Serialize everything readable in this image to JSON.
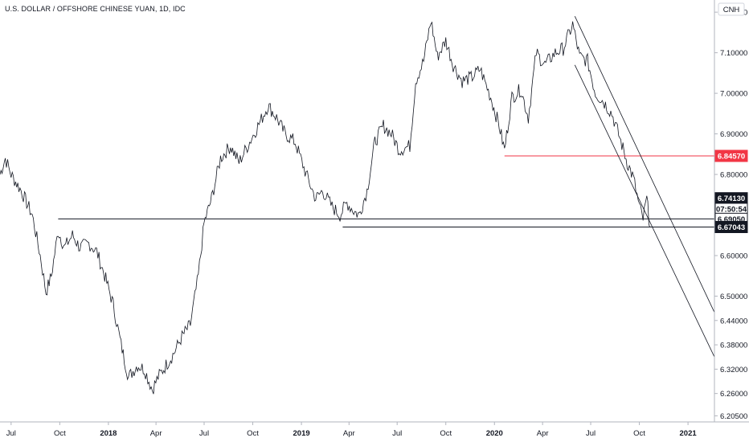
{
  "chart_data": {
    "type": "line",
    "title": "U.S. DOLLAR / OFFSHORE CHINESE YUAN, 1D, IDC",
    "currency_label": "CNH",
    "x_ticks": [
      {
        "label": "Jul",
        "date": "2017-07-01",
        "bold": false
      },
      {
        "label": "Oct",
        "date": "2017-10-01",
        "bold": false
      },
      {
        "label": "2018",
        "date": "2018-01-01",
        "bold": true
      },
      {
        "label": "Apr",
        "date": "2018-04-01",
        "bold": false
      },
      {
        "label": "Jul",
        "date": "2018-07-01",
        "bold": false
      },
      {
        "label": "Oct",
        "date": "2018-10-01",
        "bold": false
      },
      {
        "label": "2019",
        "date": "2019-01-01",
        "bold": true
      },
      {
        "label": "Apr",
        "date": "2019-04-01",
        "bold": false
      },
      {
        "label": "Jul",
        "date": "2019-07-01",
        "bold": false
      },
      {
        "label": "Oct",
        "date": "2019-10-01",
        "bold": false
      },
      {
        "label": "2020",
        "date": "2020-01-01",
        "bold": true
      },
      {
        "label": "Apr",
        "date": "2020-04-01",
        "bold": false
      },
      {
        "label": "Jul",
        "date": "2020-07-01",
        "bold": false
      },
      {
        "label": "Oct",
        "date": "2020-10-01",
        "bold": false
      },
      {
        "label": "2021",
        "date": "2021-01-01",
        "bold": true
      }
    ],
    "y_ticks": [
      "7.20000",
      "7.10000",
      "7.00000",
      "6.90000",
      "6.80000",
      "6.60000",
      "6.50000",
      "6.44000",
      "6.38000",
      "6.32000",
      "6.26000",
      "6.20500"
    ],
    "y_tick_values": [
      7.2,
      7.1,
      7.0,
      6.9,
      6.8,
      6.6,
      6.5,
      6.44,
      6.38,
      6.32,
      6.26,
      6.205
    ],
    "ylim": [
      6.19,
      7.23
    ],
    "xlim": [
      "2017-06-10",
      "2021-02-20"
    ],
    "series": [
      {
        "values": [
          [
            "2017-06-10",
            6.8
          ],
          [
            "2017-06-20",
            6.84
          ],
          [
            "2017-07-01",
            6.8
          ],
          [
            "2017-07-20",
            6.76
          ],
          [
            "2017-08-10",
            6.7
          ],
          [
            "2017-08-25",
            6.6
          ],
          [
            "2017-09-05",
            6.51
          ],
          [
            "2017-09-15",
            6.55
          ],
          [
            "2017-09-28",
            6.66
          ],
          [
            "2017-10-10",
            6.62
          ],
          [
            "2017-10-25",
            6.65
          ],
          [
            "2017-11-08",
            6.62
          ],
          [
            "2017-11-25",
            6.63
          ],
          [
            "2017-12-10",
            6.61
          ],
          [
            "2017-12-25",
            6.55
          ],
          [
            "2018-01-10",
            6.48
          ],
          [
            "2018-01-25",
            6.38
          ],
          [
            "2018-02-08",
            6.3
          ],
          [
            "2018-02-25",
            6.33
          ],
          [
            "2018-03-10",
            6.32
          ],
          [
            "2018-03-25",
            6.27
          ],
          [
            "2018-04-05",
            6.3
          ],
          [
            "2018-04-20",
            6.33
          ],
          [
            "2018-05-05",
            6.36
          ],
          [
            "2018-05-20",
            6.4
          ],
          [
            "2018-06-05",
            6.43
          ],
          [
            "2018-06-20",
            6.55
          ],
          [
            "2018-07-01",
            6.68
          ],
          [
            "2018-07-15",
            6.74
          ],
          [
            "2018-08-01",
            6.84
          ],
          [
            "2018-08-20",
            6.87
          ],
          [
            "2018-09-05",
            6.83
          ],
          [
            "2018-09-25",
            6.88
          ],
          [
            "2018-10-15",
            6.93
          ],
          [
            "2018-10-30",
            6.97
          ],
          [
            "2018-11-15",
            6.94
          ],
          [
            "2018-12-01",
            6.9
          ],
          [
            "2018-12-20",
            6.88
          ],
          [
            "2019-01-10",
            6.8
          ],
          [
            "2019-01-28",
            6.74
          ],
          [
            "2019-02-10",
            6.76
          ],
          [
            "2019-02-28",
            6.72
          ],
          [
            "2019-03-15",
            6.7
          ],
          [
            "2019-03-28",
            6.73
          ],
          [
            "2019-04-10",
            6.71
          ],
          [
            "2019-04-20",
            6.7
          ],
          [
            "2019-05-05",
            6.76
          ],
          [
            "2019-05-20",
            6.88
          ],
          [
            "2019-06-05",
            6.92
          ],
          [
            "2019-06-20",
            6.9
          ],
          [
            "2019-07-05",
            6.86
          ],
          [
            "2019-07-25",
            6.87
          ],
          [
            "2019-08-05",
            7.03
          ],
          [
            "2019-08-20",
            7.08
          ],
          [
            "2019-09-03",
            7.18
          ],
          [
            "2019-09-15",
            7.09
          ],
          [
            "2019-10-01",
            7.13
          ],
          [
            "2019-10-15",
            7.07
          ],
          [
            "2019-11-01",
            7.03
          ],
          [
            "2019-11-20",
            7.04
          ],
          [
            "2019-12-05",
            7.06
          ],
          [
            "2019-12-25",
            6.99
          ],
          [
            "2020-01-10",
            6.92
          ],
          [
            "2020-01-20",
            6.86
          ],
          [
            "2020-02-03",
            6.99
          ],
          [
            "2020-02-20",
            7.01
          ],
          [
            "2020-03-05",
            6.94
          ],
          [
            "2020-03-20",
            7.1
          ],
          [
            "2020-04-05",
            7.07
          ],
          [
            "2020-04-25",
            7.1
          ],
          [
            "2020-05-10",
            7.11
          ],
          [
            "2020-05-28",
            7.17
          ],
          [
            "2020-06-10",
            7.09
          ],
          [
            "2020-06-25",
            7.08
          ],
          [
            "2020-07-10",
            7.0
          ],
          [
            "2020-07-25",
            6.98
          ],
          [
            "2020-08-10",
            6.95
          ],
          [
            "2020-08-25",
            6.89
          ],
          [
            "2020-09-08",
            6.83
          ],
          [
            "2020-09-20",
            6.79
          ],
          [
            "2020-10-01",
            6.72
          ],
          [
            "2020-10-08",
            6.69
          ],
          [
            "2020-10-15",
            6.74
          ],
          [
            "2020-10-21",
            6.67
          ]
        ]
      }
    ],
    "horizontal_lines": [
      {
        "value": 6.8457,
        "from": "2020-01-20",
        "color": "#f23645"
      },
      {
        "value": 6.6905,
        "from": "2017-09-28",
        "color": "#131722"
      },
      {
        "value": 6.6704,
        "from": "2019-03-20",
        "color": "#131722"
      }
    ],
    "channel_lines": [
      {
        "from": [
          "2020-06-01",
          7.19
        ],
        "to": [
          "2021-02-20",
          6.46
        ]
      },
      {
        "from": [
          "2020-06-01",
          7.07
        ],
        "to": [
          "2021-02-20",
          6.35
        ]
      }
    ],
    "price_tags": [
      {
        "label": "6.84570",
        "value": 6.8457,
        "bg": "#f23645",
        "fg": "#ffffff"
      },
      {
        "label": "6.74130",
        "value": 6.7413,
        "bg": "#131722",
        "fg": "#ffffff"
      },
      {
        "label": "07:50:54",
        "value": 6.715,
        "bg": "#ffffff",
        "fg": "#131722",
        "border": "#131722"
      },
      {
        "label": "6.69050",
        "value": 6.6905,
        "bg": "#ffffff",
        "fg": "#131722",
        "border": "#131722"
      },
      {
        "label": "6.67043",
        "value": 6.6704,
        "bg": "#131722",
        "fg": "#ffffff"
      }
    ]
  },
  "colors": {
    "price_line": "#131722",
    "axis": "#b2b5be",
    "background": "#ffffff"
  }
}
